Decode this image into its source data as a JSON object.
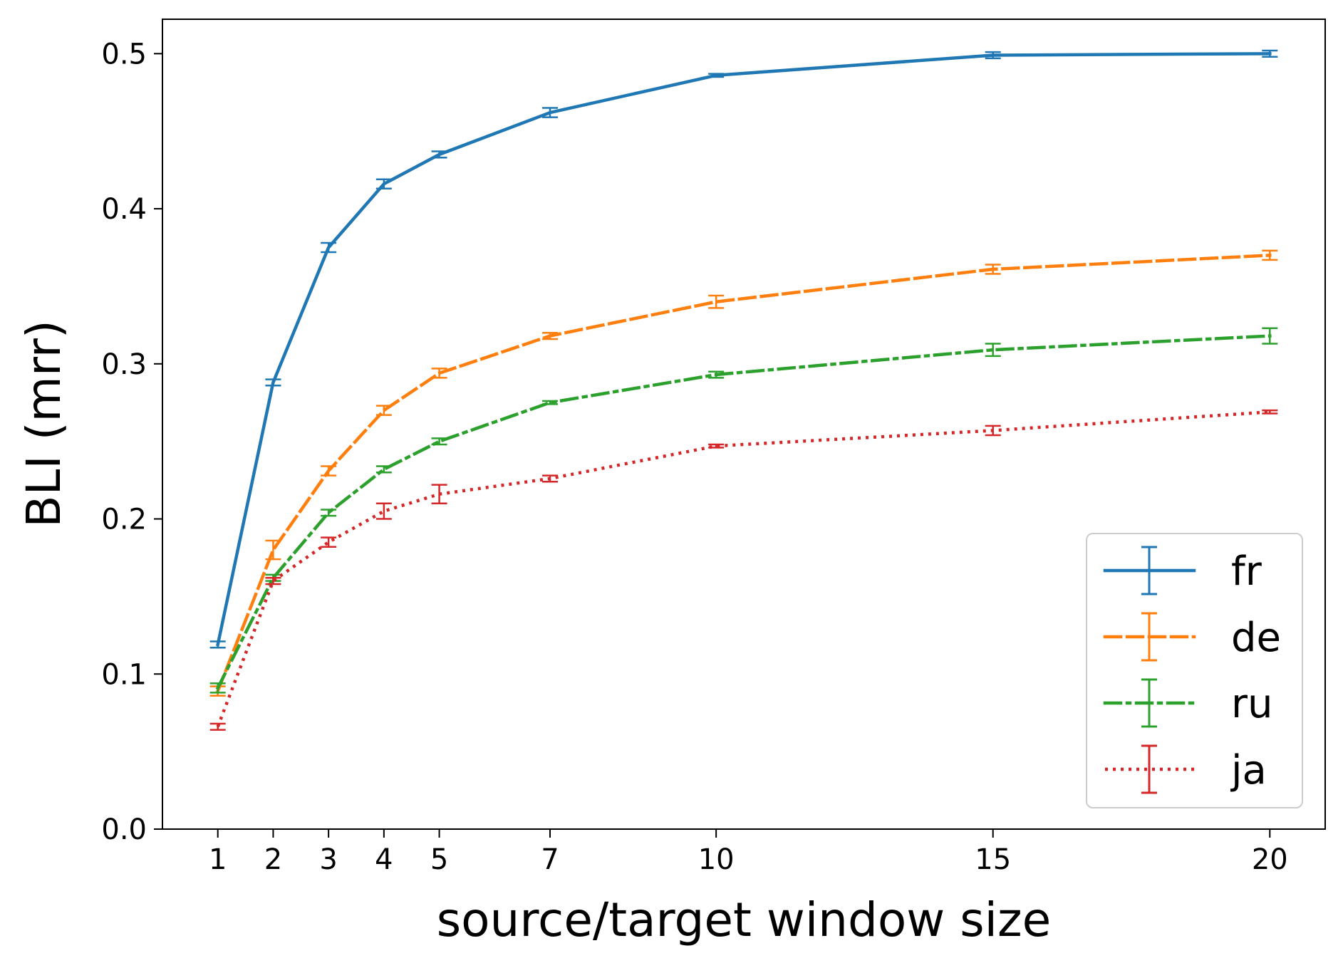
{
  "chart_data": {
    "type": "line",
    "xlabel": "source/target window size",
    "ylabel": "BLI (mrr)",
    "x": [
      1,
      2,
      3,
      4,
      5,
      7,
      10,
      15,
      20
    ],
    "xticks": [
      1,
      2,
      3,
      4,
      5,
      7,
      10,
      15,
      20
    ],
    "xlim": [
      0,
      21
    ],
    "ylim": [
      0,
      0.5222
    ],
    "yticks": [
      "0.0",
      "0.1",
      "0.2",
      "0.3",
      "0.4",
      "0.5"
    ],
    "grid": false,
    "legend_position": "bottom-right",
    "series": [
      {
        "name": "fr",
        "color": "#1f77b4",
        "style": "solid",
        "values": [
          0.119,
          0.288,
          0.375,
          0.416,
          0.435,
          0.462,
          0.486,
          0.499,
          0.5
        ],
        "errors": [
          0.002,
          0.002,
          0.003,
          0.003,
          0.002,
          0.003,
          0.001,
          0.002,
          0.002
        ]
      },
      {
        "name": "de",
        "color": "#ff7f0e",
        "style": "dashed",
        "values": [
          0.089,
          0.18,
          0.231,
          0.27,
          0.294,
          0.318,
          0.34,
          0.361,
          0.37
        ],
        "errors": [
          0.003,
          0.006,
          0.003,
          0.003,
          0.003,
          0.002,
          0.004,
          0.003,
          0.003
        ]
      },
      {
        "name": "ru",
        "color": "#2ca02c",
        "style": "dashdot",
        "values": [
          0.091,
          0.162,
          0.204,
          0.232,
          0.25,
          0.275,
          0.293,
          0.309,
          0.318
        ],
        "errors": [
          0.003,
          0.002,
          0.002,
          0.002,
          0.002,
          0.001,
          0.002,
          0.004,
          0.005
        ]
      },
      {
        "name": "ja",
        "color": "#d62728",
        "style": "dotted",
        "values": [
          0.066,
          0.16,
          0.185,
          0.205,
          0.216,
          0.226,
          0.247,
          0.257,
          0.269
        ],
        "errors": [
          0.002,
          0.002,
          0.003,
          0.005,
          0.006,
          0.002,
          0.001,
          0.003,
          0.001
        ]
      }
    ]
  }
}
